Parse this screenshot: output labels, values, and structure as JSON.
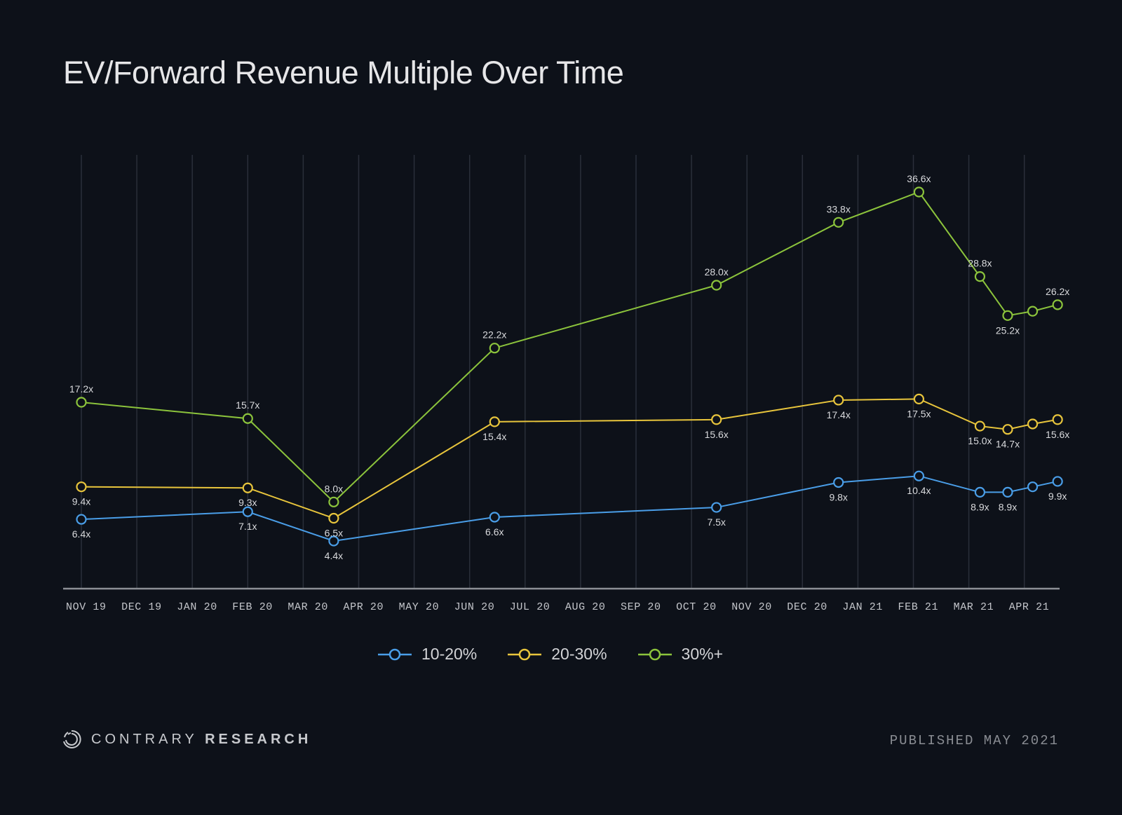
{
  "header": {
    "title": "EV/Forward Revenue Multiple Over Time"
  },
  "footer": {
    "brand_light": "CONTRARY",
    "brand_bold": "RESEARCH",
    "published": "PUBLISHED MAY 2021"
  },
  "colors": {
    "background": "#0d1119",
    "series_10_20": "#4a9ee8",
    "series_20_30": "#e8c53c",
    "series_30_plus": "#8cc43c"
  },
  "chart_data": {
    "type": "line",
    "title": "EV/Forward Revenue Multiple Over Time",
    "xlabel": "",
    "ylabel": "",
    "x_ticks": [
      "NOV 19",
      "DEC 19",
      "JAN 20",
      "FEB 20",
      "MAR 20",
      "APR 20",
      "MAY 20",
      "JUN 20",
      "JUL 20",
      "AUG 20",
      "SEP 20",
      "OCT 20",
      "NOV 20",
      "DEC 20",
      "JAN 21",
      "FEB 21",
      "MAR 21",
      "APR 21"
    ],
    "x_unit": "months since NOV 19",
    "x": [
      0,
      3.0,
      4.55,
      7.45,
      11.45,
      13.65,
      15.1,
      16.2,
      16.7,
      17.15,
      17.6
    ],
    "ylim": [
      0,
      40
    ],
    "grid": "vertical",
    "legend": "bottom-center",
    "value_suffix": "x",
    "series": [
      {
        "name": "10-20%",
        "color": "#4a9ee8",
        "values": [
          6.4,
          7.1,
          4.4,
          6.6,
          7.5,
          9.8,
          10.4,
          8.9,
          8.9,
          9.4,
          9.9
        ],
        "labels": [
          "6.4x",
          "7.1x",
          "4.4x",
          "6.6x",
          "7.5x",
          "9.8x",
          "10.4x",
          "8.9x",
          "8.9x",
          "",
          "9.9x"
        ],
        "label_pos": "below"
      },
      {
        "name": "20-30%",
        "color": "#e8c53c",
        "values": [
          9.4,
          9.3,
          6.5,
          15.4,
          15.6,
          17.4,
          17.5,
          15.0,
          14.7,
          15.2,
          15.6
        ],
        "labels": [
          "9.4x",
          "9.3x",
          "6.5x",
          "15.4x",
          "15.6x",
          "17.4x",
          "17.5x",
          "15.0x",
          "14.7x",
          "",
          "15.6x"
        ],
        "label_pos": "below"
      },
      {
        "name": "30%+",
        "color": "#8cc43c",
        "values": [
          17.2,
          15.7,
          8.0,
          22.2,
          28.0,
          33.8,
          36.6,
          28.8,
          25.2,
          25.6,
          26.2
        ],
        "labels": [
          "17.2x",
          "15.7x",
          "8.0x",
          "22.2x",
          "28.0x",
          "33.8x",
          "36.6x",
          "28.8x",
          "25.2x",
          "",
          "26.2x"
        ],
        "label_pos": [
          "above",
          "above",
          "above",
          "above",
          "above",
          "above",
          "above",
          "above",
          "below",
          "above",
          "above"
        ]
      }
    ]
  }
}
